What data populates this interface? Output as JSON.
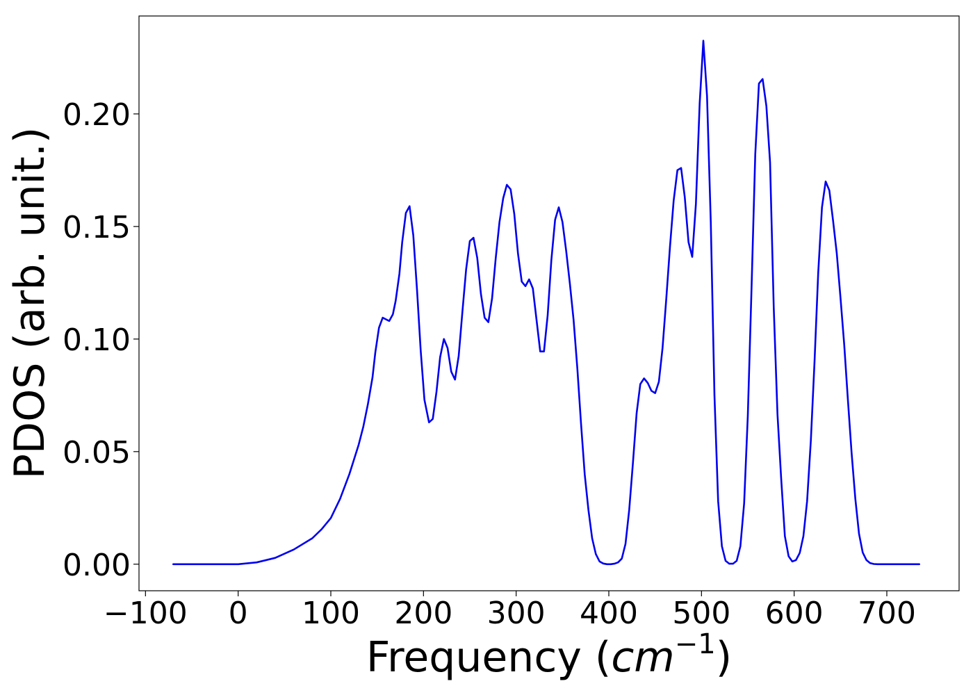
{
  "chart_data": {
    "type": "line",
    "title": "",
    "xlabel": "Frequency",
    "xlabel_unit_base": "cm",
    "xlabel_unit_exp": "−1",
    "ylabel": "PDOS (arb. unit.)",
    "xlim": [
      -107,
      778
    ],
    "ylim": [
      -0.0118,
      0.2435
    ],
    "xticks": [
      -100,
      0,
      100,
      200,
      300,
      400,
      500,
      600,
      700
    ],
    "xtick_labels": [
      "−100",
      "0",
      "100",
      "200",
      "300",
      "400",
      "500",
      "600",
      "700"
    ],
    "yticks": [
      0.0,
      0.05,
      0.1,
      0.15,
      0.2
    ],
    "ytick_labels": [
      "0.00",
      "0.05",
      "0.10",
      "0.15",
      "0.20"
    ],
    "grid": false,
    "legend": false,
    "series": [
      {
        "color": "#0000ee",
        "points": [
          [
            -70,
            0.0
          ],
          [
            0,
            0.0
          ],
          [
            20,
            0.0008
          ],
          [
            40,
            0.0028
          ],
          [
            60,
            0.0065
          ],
          [
            80,
            0.0115
          ],
          [
            90,
            0.0155
          ],
          [
            100,
            0.0205
          ],
          [
            110,
            0.029
          ],
          [
            120,
            0.04
          ],
          [
            130,
            0.053
          ],
          [
            135,
            0.061
          ],
          [
            140,
            0.071
          ],
          [
            145,
            0.083
          ],
          [
            148,
            0.094
          ],
          [
            152,
            0.105
          ],
          [
            156,
            0.1095
          ],
          [
            163,
            0.108
          ],
          [
            167,
            0.111
          ],
          [
            170,
            0.117
          ],
          [
            174,
            0.129
          ],
          [
            177,
            0.143
          ],
          [
            181,
            0.156
          ],
          [
            185,
            0.159
          ],
          [
            189,
            0.146
          ],
          [
            193,
            0.122
          ],
          [
            197,
            0.095
          ],
          [
            201,
            0.073
          ],
          [
            206,
            0.063
          ],
          [
            210,
            0.0645
          ],
          [
            214,
            0.0765
          ],
          [
            218,
            0.092
          ],
          [
            222,
            0.1
          ],
          [
            226,
            0.096
          ],
          [
            230,
            0.0855
          ],
          [
            234,
            0.082
          ],
          [
            238,
            0.0925
          ],
          [
            242,
            0.112
          ],
          [
            246,
            0.131
          ],
          [
            250,
            0.1435
          ],
          [
            254,
            0.145
          ],
          [
            258,
            0.136
          ],
          [
            262,
            0.12
          ],
          [
            266,
            0.1095
          ],
          [
            270,
            0.1075
          ],
          [
            274,
            0.118
          ],
          [
            278,
            0.136
          ],
          [
            282,
            0.152
          ],
          [
            286,
            0.1625
          ],
          [
            290,
            0.1685
          ],
          [
            294,
            0.1665
          ],
          [
            298,
            0.1555
          ],
          [
            302,
            0.138
          ],
          [
            306,
            0.1255
          ],
          [
            310,
            0.1235
          ],
          [
            314,
            0.1265
          ],
          [
            318,
            0.1225
          ],
          [
            322,
            0.1085
          ],
          [
            326,
            0.0945
          ],
          [
            330,
            0.0945
          ],
          [
            334,
            0.1105
          ],
          [
            338,
            0.135
          ],
          [
            342,
            0.153
          ],
          [
            346,
            0.1585
          ],
          [
            350,
            0.152
          ],
          [
            354,
            0.139
          ],
          [
            358,
            0.1245
          ],
          [
            362,
            0.1085
          ],
          [
            366,
            0.087
          ],
          [
            370,
            0.0625
          ],
          [
            374,
            0.04
          ],
          [
            378,
            0.024
          ],
          [
            382,
            0.0115
          ],
          [
            386,
            0.0045
          ],
          [
            390,
            0.0012
          ],
          [
            394,
            0.0003
          ],
          [
            398,
            0.0
          ],
          [
            402,
            0.0
          ],
          [
            406,
            0.0002
          ],
          [
            410,
            0.0008
          ],
          [
            414,
            0.0025
          ],
          [
            418,
            0.009
          ],
          [
            422,
            0.024
          ],
          [
            426,
            0.045
          ],
          [
            430,
            0.067
          ],
          [
            434,
            0.08
          ],
          [
            438,
            0.0825
          ],
          [
            442,
            0.0805
          ],
          [
            446,
            0.077
          ],
          [
            450,
            0.076
          ],
          [
            454,
            0.081
          ],
          [
            458,
            0.096
          ],
          [
            462,
            0.118
          ],
          [
            466,
            0.141
          ],
          [
            470,
            0.1615
          ],
          [
            474,
            0.175
          ],
          [
            478,
            0.176
          ],
          [
            482,
            0.163
          ],
          [
            486,
            0.143
          ],
          [
            490,
            0.1365
          ],
          [
            494,
            0.16
          ],
          [
            498,
            0.2045
          ],
          [
            502,
            0.2325
          ],
          [
            506,
            0.208
          ],
          [
            510,
            0.152
          ],
          [
            514,
            0.075
          ],
          [
            518,
            0.028
          ],
          [
            522,
            0.008
          ],
          [
            526,
            0.0015
          ],
          [
            530,
            0.0002
          ],
          [
            534,
            0.0002
          ],
          [
            538,
            0.0015
          ],
          [
            542,
            0.008
          ],
          [
            546,
            0.027
          ],
          [
            550,
            0.066
          ],
          [
            554,
            0.122
          ],
          [
            558,
            0.182
          ],
          [
            562,
            0.2135
          ],
          [
            566,
            0.2155
          ],
          [
            570,
            0.2035
          ],
          [
            574,
            0.1785
          ],
          [
            578,
            0.114
          ],
          [
            582,
            0.0665
          ],
          [
            586,
            0.038
          ],
          [
            590,
            0.0125
          ],
          [
            594,
            0.0035
          ],
          [
            598,
            0.0012
          ],
          [
            602,
            0.0018
          ],
          [
            606,
            0.005
          ],
          [
            610,
            0.0125
          ],
          [
            614,
            0.028
          ],
          [
            618,
            0.055
          ],
          [
            622,
            0.09
          ],
          [
            626,
            0.1295
          ],
          [
            630,
            0.1585
          ],
          [
            634,
            0.17
          ],
          [
            638,
            0.166
          ],
          [
            642,
            0.1525
          ],
          [
            646,
            0.138
          ],
          [
            650,
            0.1185
          ],
          [
            654,
            0.0975
          ],
          [
            658,
            0.073
          ],
          [
            662,
            0.0495
          ],
          [
            666,
            0.029
          ],
          [
            670,
            0.0135
          ],
          [
            674,
            0.0052
          ],
          [
            678,
            0.0018
          ],
          [
            682,
            0.0005
          ],
          [
            686,
            0.0001
          ],
          [
            690,
            0.0
          ],
          [
            735,
            0.0
          ]
        ]
      }
    ]
  }
}
